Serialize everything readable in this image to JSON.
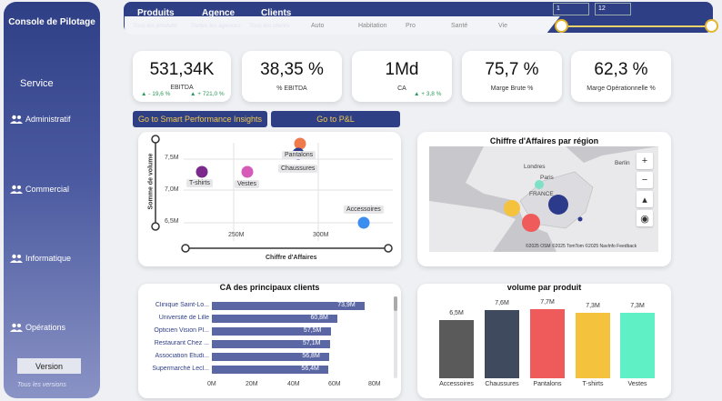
{
  "sidebar": {
    "title": "Console de Pilotage",
    "service": "Service",
    "items": [
      {
        "label": "Administratif",
        "icon": "users-icon"
      },
      {
        "label": "Commercial",
        "icon": "users-icon"
      },
      {
        "label": "Informatique",
        "icon": "users-icon"
      },
      {
        "label": "Opérations",
        "icon": "users-icon"
      }
    ],
    "version_label": "Version",
    "version_sub": "Tous les versions"
  },
  "topbar": {
    "nav": [
      {
        "label": "Produits",
        "sub": "Tous les produits"
      },
      {
        "label": "Agence",
        "sub": "Toutes les agences"
      },
      {
        "label": "Clients",
        "sub": "Tous les clients"
      }
    ],
    "categories": [
      "Auto",
      "Habitation",
      "Pro",
      "Santé",
      "Vie"
    ],
    "range": {
      "from": "1",
      "to": "12",
      "accent": "#e4b52a"
    }
  },
  "kpis": [
    {
      "value": "531,34K",
      "label": "EBITDA",
      "delta1": "▲ - 19,6 %",
      "delta2": "▲ + 721,0 %"
    },
    {
      "value": "38,35 %",
      "label": "% EBITDA"
    },
    {
      "value": "1Md",
      "label": "CA",
      "delta1": "▲ + 3,8 %"
    },
    {
      "value": "75,7 %",
      "label": "Marge Brute %"
    },
    {
      "value": "62,3 %",
      "label": "Marge Opérationnelle %"
    }
  ],
  "buttons": {
    "smart": "Go to Smart Performance Insights",
    "pnl": "Go to P&L"
  },
  "scatter": {
    "xlabel": "Chiffre d'Affaires",
    "ylabel": "Somme de volume",
    "xticks": [
      "250M",
      "300M"
    ],
    "yticks": [
      "7,5M",
      "7,0M",
      "6,5M"
    ],
    "points": [
      {
        "label": "T-shirts",
        "color": "#7b2a8c"
      },
      {
        "label": "Vestes",
        "color": "#d65bb8"
      },
      {
        "label": "Pantalons",
        "color": "#ef7b4c"
      },
      {
        "label": "Chaussures",
        "color": "#2b3a8a"
      },
      {
        "label": "Accessoires",
        "color": "#3c8df0"
      }
    ]
  },
  "map": {
    "title": "Chiffre d'Affaires par région",
    "labels": [
      "Londres",
      "Paris",
      "FRANCE",
      "Berlin"
    ],
    "attribution": "©2025 OSM  ©2025 TomTom  ©2025 NavInfo  Feedback",
    "controls": [
      "zoom-in-icon",
      "zoom-out-icon",
      "compass-icon",
      "location-icon"
    ]
  },
  "clients": {
    "title": "CA des principaux clients",
    "rows": [
      {
        "label": "Clinique Saint-Lo...",
        "value": "73,9M"
      },
      {
        "label": "Université de Lille",
        "value": "60,8M"
      },
      {
        "label": "Opticien Vision Pl...",
        "value": "57,5M"
      },
      {
        "label": "Restaurant Chez ...",
        "value": "57,1M"
      },
      {
        "label": "Association Étudi...",
        "value": "56,8M"
      },
      {
        "label": "Supermarché Lecl...",
        "value": "56,4M"
      }
    ],
    "xticks": [
      "0M",
      "20M",
      "40M",
      "60M",
      "80M"
    ]
  },
  "chart_data": {
    "type": "bar",
    "title": "volume par produit",
    "categories": [
      "Accessoires",
      "Chaussures",
      "Pantalons",
      "T-shirts",
      "Vestes"
    ],
    "values": [
      6.5,
      7.6,
      7.7,
      7.3,
      7.3
    ],
    "labels": [
      "6,5M",
      "7,6M",
      "7,7M",
      "7,3M",
      "7,3M"
    ],
    "colors": [
      "#5a5a5a",
      "#404a5e",
      "#ef5a5a",
      "#f5c23e",
      "#5ff0c6"
    ]
  }
}
